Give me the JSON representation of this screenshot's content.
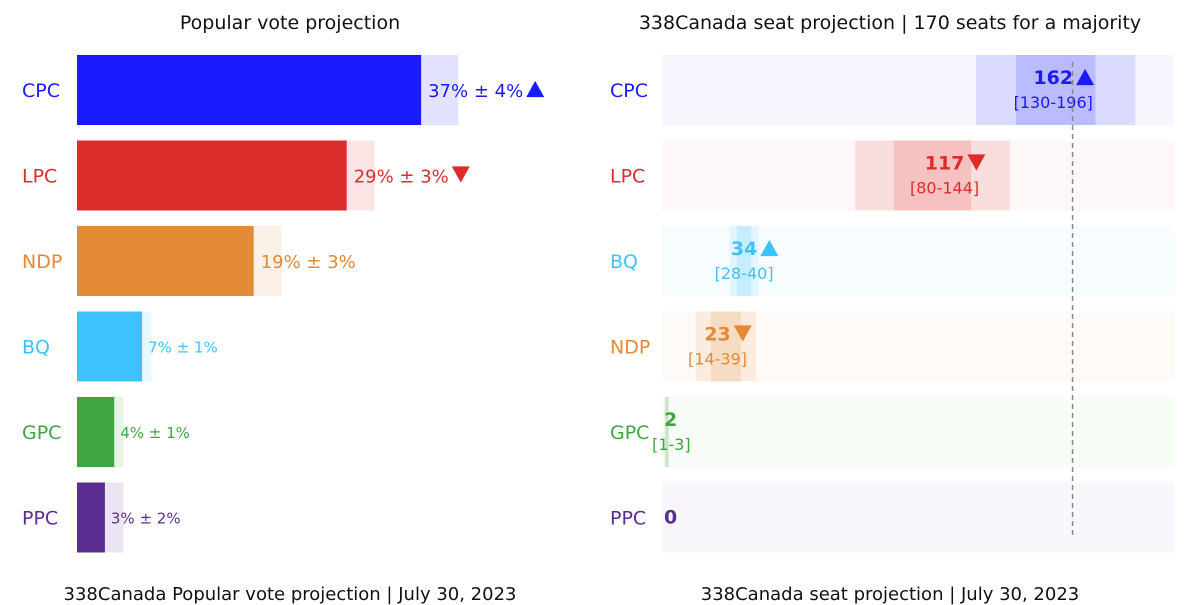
{
  "left_title": "Popular vote projection",
  "right_title": "338Canada seat projection | 170 seats for a majority",
  "left_footer": "338Canada Popular vote projection | July 30, 2023",
  "right_footer": "338Canada seat projection | July 30, 2023",
  "colors": {
    "CPC": "#1a1aff",
    "LPC": "#dd2c2c",
    "NDP": "#e38a34",
    "BQ": "#3ec2ff",
    "GPC": "#3fa63f",
    "PPC": "#5b2d91"
  },
  "chart_data": [
    {
      "type": "bar",
      "title": "Popular vote projection",
      "categories": [
        "CPC",
        "LPC",
        "NDP",
        "BQ",
        "GPC",
        "PPC"
      ],
      "values": [
        37,
        29,
        19,
        7,
        4,
        3
      ],
      "margins": [
        4,
        3,
        3,
        1,
        1,
        2
      ],
      "trend": [
        "up",
        "down",
        "",
        "",
        "",
        ""
      ],
      "labels": [
        "37% ± 4%",
        "29% ± 3%",
        "19% ± 3%",
        "7% ± 1%",
        "4% ± 1%",
        "3% ± 2%"
      ]
    },
    {
      "type": "bar",
      "title": "338Canada seat projection | 170 seats for a majority",
      "categories": [
        "CPC",
        "LPC",
        "BQ",
        "NDP",
        "GPC",
        "PPC"
      ],
      "values": [
        162,
        117,
        34,
        23,
        2,
        0
      ],
      "ranges": [
        [
          130,
          196
        ],
        [
          80,
          144
        ],
        [
          28,
          40
        ],
        [
          14,
          39
        ],
        [
          1,
          3
        ],
        [
          0,
          0
        ]
      ],
      "range_labels": [
        "[130-196]",
        "[80-144]",
        "[28-40]",
        "[14-39]",
        "[1-3]",
        ""
      ],
      "trend": [
        "up",
        "down",
        "up",
        "down",
        "",
        ""
      ],
      "majority": 170
    }
  ]
}
